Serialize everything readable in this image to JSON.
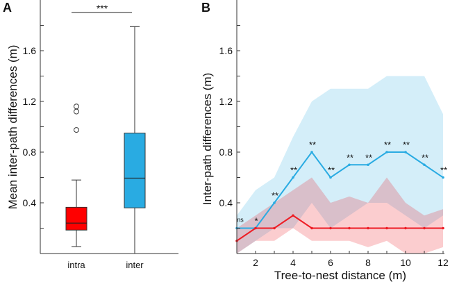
{
  "chart_data": [
    {
      "type": "box",
      "panel_label": "A",
      "ylabel": "Mean inter-path differences (m)",
      "xlabel": "",
      "ylim": [
        0,
        2.0
      ],
      "yticks": [
        0.4,
        0.8,
        1.2,
        1.6
      ],
      "categories": [
        "intra",
        "inter"
      ],
      "colors": [
        "#ff0000",
        "#29abe2"
      ],
      "boxes": [
        {
          "name": "intra",
          "whisker_low": 0.055,
          "q1": 0.185,
          "median": 0.24,
          "q3": 0.365,
          "whisker_high": 0.58,
          "outliers": [
            0.975,
            1.12,
            1.16
          ]
        },
        {
          "name": "inter",
          "whisker_low": 0.0,
          "q1": 0.36,
          "median": 0.595,
          "q3": 0.95,
          "whisker_high": 1.79,
          "outliers": []
        }
      ],
      "significance": {
        "label": "***",
        "y": 1.9
      }
    },
    {
      "type": "line",
      "panel_label": "B",
      "xlabel": "Tree-to-nest distance (m)",
      "ylabel": "Inter-path differences (m)",
      "xlim": [
        1,
        12
      ],
      "ylim": [
        0,
        2.0
      ],
      "xticks": [
        2,
        4,
        6,
        8,
        10,
        12
      ],
      "yticks": [
        0.4,
        0.8,
        1.2,
        1.6
      ],
      "x": [
        1,
        2,
        3,
        4,
        5,
        6,
        7,
        8,
        9,
        10,
        11,
        12
      ],
      "series": [
        {
          "name": "inter",
          "color": "#29abe2",
          "values": [
            0.2,
            0.2,
            0.4,
            0.6,
            0.8,
            0.6,
            0.7,
            0.7,
            0.8,
            0.8,
            0.7,
            0.6
          ],
          "band_upper": [
            0.3,
            0.5,
            0.6,
            0.92,
            1.2,
            1.3,
            1.3,
            1.3,
            1.4,
            1.4,
            1.4,
            1.1
          ],
          "band_lower": [
            0.0,
            0.1,
            0.2,
            0.2,
            0.4,
            0.2,
            0.3,
            0.4,
            0.4,
            0.3,
            0.2,
            0.3
          ]
        },
        {
          "name": "intra",
          "color": "#ee1c24",
          "values": [
            0.1,
            0.2,
            0.2,
            0.3,
            0.2,
            0.2,
            0.2,
            0.2,
            0.2,
            0.2,
            0.2,
            0.2
          ],
          "band_upper": [
            0.2,
            0.3,
            0.4,
            0.5,
            0.6,
            0.4,
            0.45,
            0.4,
            0.6,
            0.4,
            0.3,
            0.35
          ],
          "band_lower": [
            0.0,
            0.1,
            0.1,
            0.2,
            0.1,
            0.1,
            0.1,
            0.05,
            0.1,
            0.0,
            0.0,
            0.05
          ]
        }
      ],
      "significance": [
        "ns",
        "*",
        "**",
        "**",
        "**",
        "**",
        "**",
        "**",
        "**",
        "**",
        "**",
        "**"
      ]
    }
  ]
}
